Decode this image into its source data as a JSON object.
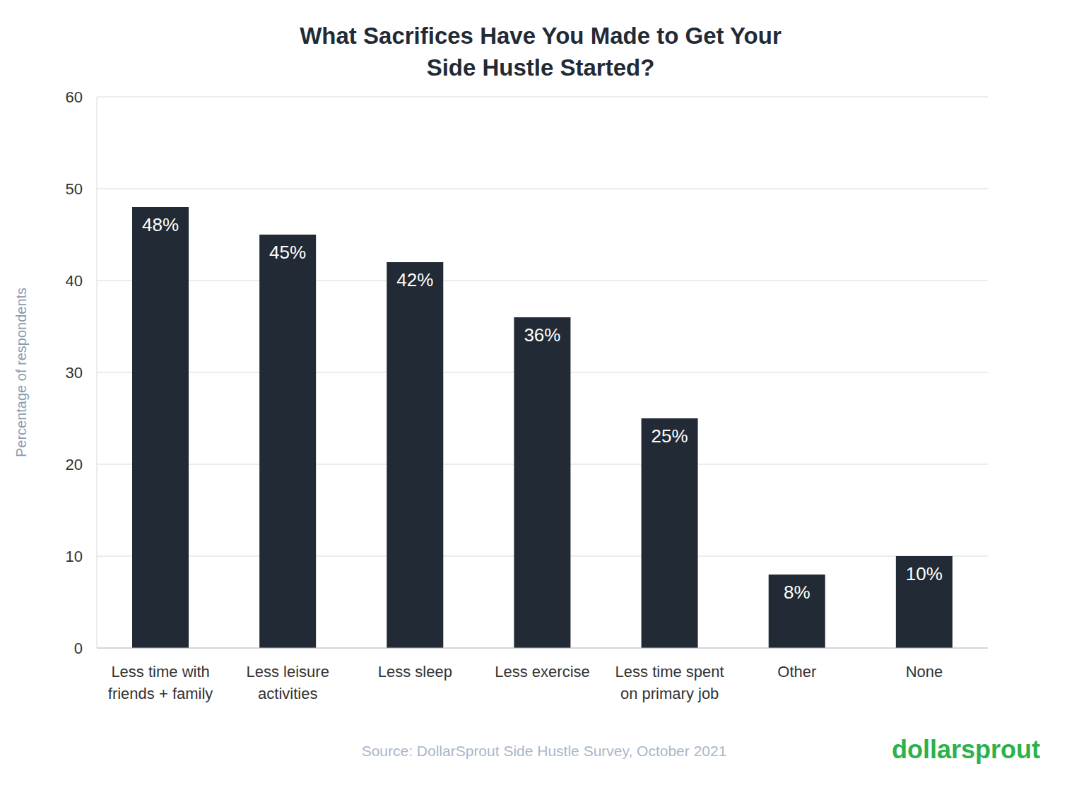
{
  "chart_data": {
    "type": "bar",
    "title": "What Sacrifices Have You Made to Get Your Side Hustle Started?",
    "y_label": "Percentage of respondents",
    "categories": [
      "Less time with friends + family",
      "Less leisure activities",
      "Less sleep",
      "Less exercise",
      "Less time spent on primary job",
      "Other",
      "None"
    ],
    "values": [
      48,
      45,
      42,
      36,
      25,
      8,
      10
    ],
    "value_labels": [
      "48%",
      "45%",
      "42%",
      "36%",
      "25%",
      "8%",
      "10%"
    ],
    "data_labels": true,
    "color": "#222a35",
    "ylim": [
      0,
      60
    ],
    "yticks": [
      0,
      10,
      20,
      30,
      40,
      50,
      60
    ],
    "grid": true,
    "source": "Source: DollarSprout Side Hustle Survey, October 2021",
    "watermark": "dollarsprout"
  }
}
